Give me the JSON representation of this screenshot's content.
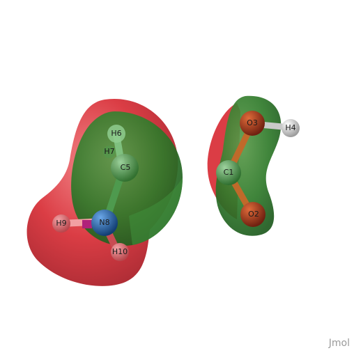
{
  "viewer": {
    "watermark": "Jmol"
  },
  "atoms": [
    {
      "label": "H6",
      "element": "H"
    },
    {
      "label": "H7",
      "element": "H"
    },
    {
      "label": "C5",
      "element": "C"
    },
    {
      "label": "H9",
      "element": "H"
    },
    {
      "label": "N8",
      "element": "N"
    },
    {
      "label": "H10",
      "element": "H"
    },
    {
      "label": "O3",
      "element": "O"
    },
    {
      "label": "H4",
      "element": "H"
    },
    {
      "label": "C1",
      "element": "C"
    },
    {
      "label": "O2",
      "element": "O"
    }
  ],
  "colors": {
    "orbital_negative": "#d9333b",
    "orbital_positive": "#2f7a2a",
    "carbon": "#4e9a4e",
    "nitrogen": "#1e5fa8",
    "oxygen": "#b03a1a",
    "hydrogen": "#e8e8e8"
  }
}
